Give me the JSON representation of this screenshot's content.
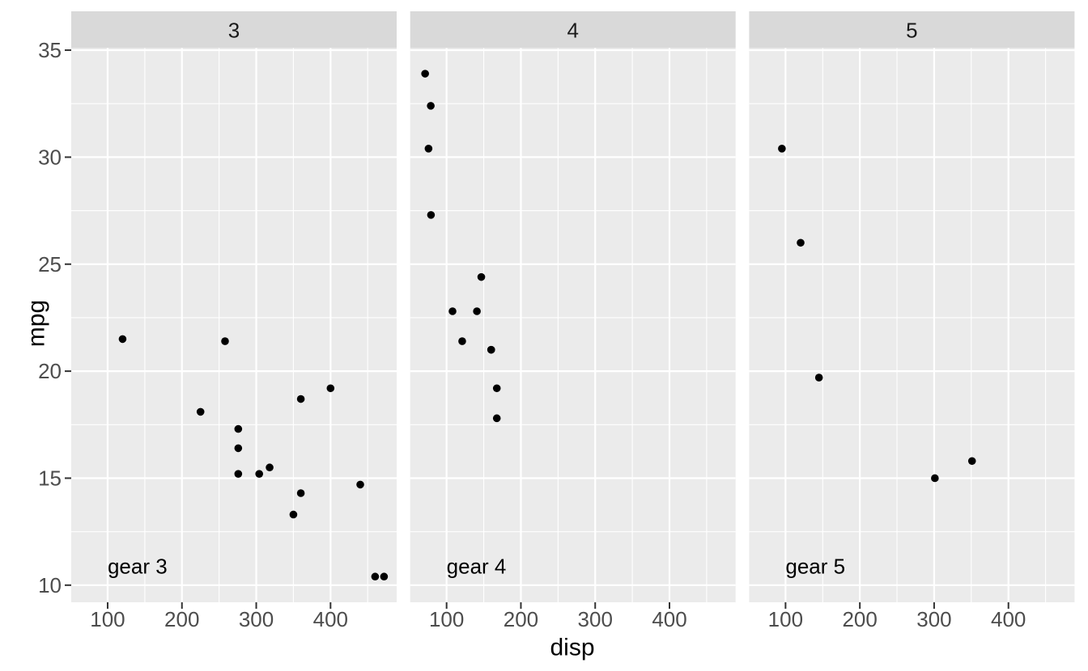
{
  "chart_data": {
    "type": "scatter",
    "title": "",
    "xlabel": "disp",
    "ylabel": "mpg",
    "facet_variable": "gear",
    "legend": "none",
    "grid": "major+minor",
    "xlim": [
      51,
      489
    ],
    "ylim": [
      9.2,
      35.1
    ],
    "x_ticks": [
      100,
      200,
      300,
      400
    ],
    "y_ticks": [
      10,
      15,
      20,
      25,
      30,
      35
    ],
    "x_minor_ticks": [
      150,
      250,
      350,
      450
    ],
    "y_minor_ticks": [
      12.5,
      17.5,
      22.5,
      27.5,
      32.5
    ],
    "facets": [
      {
        "strip_label": "3",
        "annotation": {
          "text": "gear 3",
          "x": 100,
          "y": 11,
          "align": "left"
        },
        "points": [
          [
            120.1,
            21.5
          ],
          [
            258,
            21.4
          ],
          [
            225,
            18.1
          ],
          [
            360,
            18.7
          ],
          [
            400,
            19.2
          ],
          [
            275.8,
            17.3
          ],
          [
            275.8,
            16.4
          ],
          [
            275.8,
            15.2
          ],
          [
            304,
            15.2
          ],
          [
            318,
            15.5
          ],
          [
            360,
            14.3
          ],
          [
            350,
            13.3
          ],
          [
            440,
            14.7
          ],
          [
            460,
            10.4
          ],
          [
            472,
            10.4
          ]
        ]
      },
      {
        "strip_label": "4",
        "annotation": {
          "text": "gear 4",
          "x": 100,
          "y": 11,
          "align": "left"
        },
        "points": [
          [
            71.1,
            33.9
          ],
          [
            78.7,
            32.4
          ],
          [
            75.7,
            30.4
          ],
          [
            79,
            27.3
          ],
          [
            146.7,
            24.4
          ],
          [
            108,
            22.8
          ],
          [
            140.8,
            22.8
          ],
          [
            121,
            21.4
          ],
          [
            160,
            21.0
          ],
          [
            160,
            21.0
          ],
          [
            167.6,
            19.2
          ],
          [
            167.6,
            17.8
          ]
        ]
      },
      {
        "strip_label": "5",
        "annotation": {
          "text": "gear 5",
          "x": 100,
          "y": 11,
          "align": "left"
        },
        "points": [
          [
            95.1,
            30.4
          ],
          [
            120.3,
            26.0
          ],
          [
            145,
            19.7
          ],
          [
            301,
            15.0
          ],
          [
            351,
            15.8
          ]
        ]
      }
    ],
    "colors": {
      "figure_background": "#FFFFFF",
      "panel_background": "#EBEBEB",
      "strip_background": "#D9D9D9",
      "gridline": "#FFFFFF",
      "point": "#000000",
      "tick_mark": "#333333",
      "tick_label_text": "#4D4D4D",
      "axis_title_text": "#000000",
      "strip_label_text": "#1A1A1A",
      "annotation_text": "#000000"
    }
  }
}
